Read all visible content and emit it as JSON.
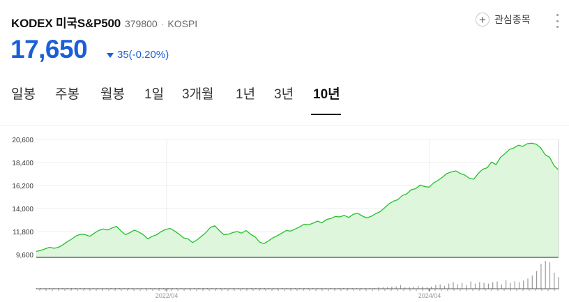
{
  "header": {
    "title": "KODEX 미국S&P500",
    "code": "379800",
    "separator": "·",
    "market": "KOSPI",
    "favorite_label": "관심종목",
    "more_icon": "more-vertical-icon"
  },
  "quote": {
    "price": "17,650",
    "change": "35(-0.20%)",
    "direction": "down",
    "color": "#1a5fd8"
  },
  "tabs": [
    {
      "label": "일봉",
      "active": false
    },
    {
      "label": "주봉",
      "active": false
    },
    {
      "label": "월봉",
      "active": false
    },
    {
      "label": "1일",
      "active": false
    },
    {
      "label": "3개월",
      "active": false
    },
    {
      "label": "1년",
      "active": false
    },
    {
      "label": "3년",
      "active": false
    },
    {
      "label": "10년",
      "active": true
    }
  ],
  "chart_data": {
    "type": "area",
    "y_ticks": [
      "20,600",
      "18,400",
      "16,200",
      "14,000",
      "11,800",
      "9,600"
    ],
    "ylim": [
      9600,
      20600
    ],
    "x_ticks": [
      "2022/04",
      "2024/04"
    ],
    "line_color": "#23c12a",
    "fill_color": "#ddf6dc",
    "price_series": [
      9900,
      10000,
      10150,
      10300,
      10200,
      10300,
      10550,
      10850,
      11100,
      11400,
      11550,
      11500,
      11350,
      11650,
      11900,
      12050,
      11950,
      12150,
      12300,
      11850,
      11500,
      11700,
      11950,
      11750,
      11500,
      11100,
      11350,
      11500,
      11800,
      12000,
      12100,
      11850,
      11550,
      11200,
      11100,
      10750,
      11000,
      11350,
      11700,
      12200,
      12350,
      11900,
      11500,
      11550,
      11700,
      11800,
      11650,
      11900,
      11550,
      11300,
      10800,
      10650,
      10900,
      11200,
      11400,
      11650,
      11900,
      11850,
      12050,
      12250,
      12500,
      12450,
      12600,
      12800,
      12650,
      12950,
      13050,
      13250,
      13200,
      13350,
      13150,
      13450,
      13550,
      13300,
      13100,
      13250,
      13500,
      13700,
      14050,
      14450,
      14700,
      14850,
      15250,
      15400,
      15800,
      15900,
      16250,
      16100,
      16050,
      16450,
      16700,
      17000,
      17350,
      17500,
      17600,
      17350,
      17200,
      16900,
      16800,
      17350,
      17750,
      17900,
      18450,
      18200,
      18900,
      19250,
      19650,
      19800,
      20050,
      19950,
      20200,
      20250,
      20150,
      19800,
      19150,
      18900,
      18100,
      17700
    ],
    "volume_series": [
      1,
      1,
      1,
      1,
      1,
      1,
      1,
      1,
      1,
      1,
      1,
      1,
      1,
      1,
      1,
      1,
      1,
      1,
      1,
      1,
      1,
      1,
      1,
      1,
      1,
      1,
      1,
      1,
      1,
      1,
      1,
      1,
      1,
      1,
      1,
      1,
      1,
      1,
      1,
      1,
      1,
      1,
      1,
      1,
      1,
      1,
      1,
      1,
      1,
      1,
      1,
      1,
      1,
      1,
      1,
      1,
      1,
      1,
      1,
      1,
      1,
      1,
      1,
      1,
      1,
      1,
      1,
      1,
      1,
      1,
      1,
      1,
      1,
      1,
      1,
      1,
      1,
      1,
      2,
      2,
      2,
      3,
      3,
      5,
      2,
      2,
      3,
      4,
      3,
      2,
      3,
      5,
      6,
      4,
      7,
      9,
      6,
      8,
      5,
      10,
      7,
      9,
      8,
      7,
      9,
      10,
      6,
      12,
      8,
      10,
      9,
      11,
      14,
      18,
      24,
      34,
      38,
      36,
      22,
      16
    ]
  }
}
